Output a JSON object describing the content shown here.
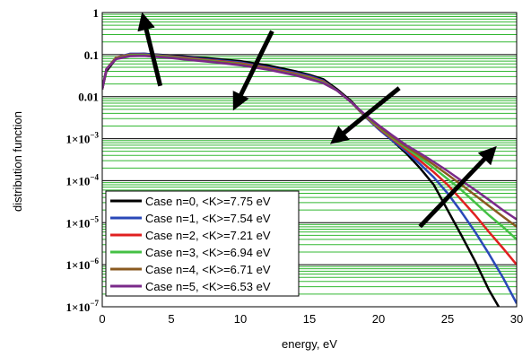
{
  "chart_data": {
    "type": "line",
    "title": "",
    "xlabel": "energy, eV",
    "ylabel": "distribution function",
    "xlim": [
      0,
      30
    ],
    "ylim": [
      1e-07,
      1
    ],
    "yscale": "log",
    "grid": true,
    "grid_color": "#33b833",
    "x_ticks": [
      0,
      5,
      10,
      15,
      20,
      25,
      30
    ],
    "x_tick_labels": [
      "0",
      "5",
      "10",
      "15",
      "20",
      "25",
      "30"
    ],
    "y_ticks": [
      1,
      0.1,
      0.01,
      0.001,
      0.0001,
      1e-05,
      1e-06,
      1e-07
    ],
    "y_tick_labels": [
      {
        "base": "1",
        "exp": ""
      },
      {
        "base": "0.1",
        "exp": ""
      },
      {
        "base": "0.01",
        "exp": ""
      },
      {
        "base": "1×10",
        "exp": "−3"
      },
      {
        "base": "1×10",
        "exp": "−4"
      },
      {
        "base": "1×10",
        "exp": "−5"
      },
      {
        "base": "1×10",
        "exp": "−6"
      },
      {
        "base": "1×10",
        "exp": "−7"
      }
    ],
    "legend_position": "bottom-left",
    "series": [
      {
        "name": "Case n=0, <K>=7.75 eV",
        "color": "#000000",
        "x": [
          0,
          0.3,
          1,
          2,
          3,
          4,
          5,
          6,
          8,
          10,
          12,
          14,
          15,
          16,
          17,
          18,
          19,
          20,
          21,
          22,
          23,
          24,
          25,
          26,
          27,
          28,
          28.7
        ],
        "y": [
          0.015,
          0.04,
          0.08,
          0.1,
          0.105,
          0.1,
          0.095,
          0.09,
          0.08,
          0.07,
          0.055,
          0.04,
          0.033,
          0.026,
          0.015,
          0.008,
          0.0035,
          0.0017,
          0.0009,
          0.00045,
          0.0002,
          8e-05,
          2e-05,
          5e-06,
          1.2e-06,
          2.5e-07,
          1e-07
        ]
      },
      {
        "name": "Case n=1, <K>=7.54 eV",
        "color": "#2a48b8",
        "x": [
          0,
          0.3,
          1,
          2,
          3,
          4,
          5,
          6,
          8,
          10,
          12,
          14,
          15,
          16,
          17,
          18,
          19,
          20,
          21,
          22,
          23,
          24,
          25,
          26,
          27,
          28,
          29,
          30
        ],
        "y": [
          0.015,
          0.045,
          0.085,
          0.105,
          0.105,
          0.098,
          0.092,
          0.086,
          0.075,
          0.065,
          0.05,
          0.037,
          0.031,
          0.024,
          0.014,
          0.0075,
          0.0034,
          0.0017,
          0.0009,
          0.0005,
          0.00025,
          0.00012,
          5e-05,
          1.8e-05,
          6e-06,
          1.8e-06,
          5e-07,
          1.2e-07
        ]
      },
      {
        "name": "Case n=2, <K>=7.21 eV",
        "color": "#e02020",
        "x": [
          0,
          0.3,
          1,
          2,
          3,
          4,
          5,
          6,
          8,
          10,
          12,
          14,
          15,
          16,
          17,
          18,
          19,
          20,
          21,
          22,
          23,
          24,
          25,
          26,
          27,
          28,
          29,
          30
        ],
        "y": [
          0.015,
          0.045,
          0.085,
          0.1,
          0.1,
          0.095,
          0.09,
          0.083,
          0.072,
          0.062,
          0.048,
          0.035,
          0.029,
          0.023,
          0.014,
          0.0075,
          0.0035,
          0.0018,
          0.001,
          0.00055,
          0.0003,
          0.00016,
          8e-05,
          3.5e-05,
          1.5e-05,
          6e-06,
          2.5e-06,
          1e-06
        ]
      },
      {
        "name": "Case n=3, <K>=6.94 eV",
        "color": "#44c044",
        "x": [
          0,
          0.3,
          1,
          2,
          3,
          4,
          5,
          6,
          8,
          10,
          12,
          14,
          15,
          16,
          17,
          18,
          19,
          20,
          21,
          22,
          23,
          24,
          25,
          26,
          27,
          28,
          29,
          30
        ],
        "y": [
          0.015,
          0.045,
          0.082,
          0.098,
          0.098,
          0.093,
          0.088,
          0.08,
          0.07,
          0.06,
          0.046,
          0.034,
          0.028,
          0.022,
          0.014,
          0.0075,
          0.0036,
          0.0019,
          0.00105,
          0.0006,
          0.00035,
          0.0002,
          0.00011,
          6e-05,
          3e-05,
          1.5e-05,
          8e-06,
          4e-06
        ]
      },
      {
        "name": "Case n=4, <K>=6.71 eV",
        "color": "#8a5a20",
        "x": [
          0,
          0.3,
          1,
          2,
          3,
          4,
          5,
          6,
          8,
          10,
          12,
          14,
          15,
          16,
          17,
          18,
          19,
          20,
          21,
          22,
          23,
          24,
          25,
          26,
          27,
          28,
          29,
          30
        ],
        "y": [
          0.015,
          0.045,
          0.08,
          0.095,
          0.095,
          0.09,
          0.085,
          0.078,
          0.068,
          0.058,
          0.045,
          0.033,
          0.027,
          0.021,
          0.014,
          0.0075,
          0.0037,
          0.002,
          0.0011,
          0.00065,
          0.0004,
          0.00024,
          0.00014,
          8e-05,
          4.5e-05,
          2.5e-05,
          1.4e-05,
          8e-06
        ]
      },
      {
        "name": "Case n=5, <K>=6.53 eV",
        "color": "#7a2a8a",
        "x": [
          0,
          0.3,
          1,
          2,
          3,
          4,
          5,
          6,
          8,
          10,
          12,
          14,
          15,
          16,
          17,
          18,
          19,
          20,
          21,
          22,
          23,
          24,
          25,
          26,
          27,
          28,
          29,
          30
        ],
        "y": [
          0.015,
          0.045,
          0.078,
          0.092,
          0.093,
          0.088,
          0.083,
          0.076,
          0.066,
          0.056,
          0.044,
          0.032,
          0.026,
          0.021,
          0.014,
          0.0075,
          0.0038,
          0.0021,
          0.0012,
          0.0007,
          0.00045,
          0.00028,
          0.00017,
          0.0001,
          6e-05,
          3.5e-05,
          2e-05,
          1.2e-05
        ]
      }
    ],
    "annotations": [
      {
        "type": "arrow",
        "from": [
          4.2,
          0.018
        ],
        "to": [
          3.0,
          0.7
        ]
      },
      {
        "type": "arrow",
        "from": [
          12.3,
          0.36
        ],
        "to": [
          9.7,
          0.0066
        ]
      },
      {
        "type": "arrow",
        "from": [
          21.5,
          0.016
        ],
        "to": [
          16.9,
          0.00095
        ]
      },
      {
        "type": "arrow",
        "from": [
          23.0,
          8.1e-06
        ],
        "to": [
          28.2,
          0.0005
        ]
      }
    ]
  }
}
